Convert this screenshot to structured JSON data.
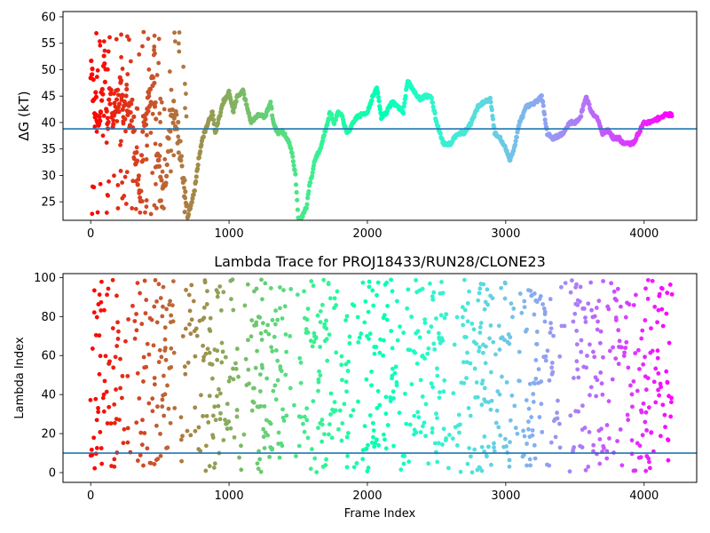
{
  "chart_data": [
    {
      "type": "scatter",
      "title": "",
      "xlabel": "",
      "ylabel": "ΔG (kT)",
      "xlim": [
        -200,
        4380
      ],
      "ylim": [
        21.5,
        61
      ],
      "xticks": [
        0,
        1000,
        2000,
        3000,
        4000
      ],
      "yticks": [
        25,
        30,
        35,
        40,
        45,
        50,
        55,
        60
      ],
      "reference_line": {
        "y": 38.8,
        "color": "#1f77b4"
      },
      "colormap": "rainbow (red at frame 0 to violet at frame 4200)",
      "grid": false,
      "trace": [
        [
          0,
          50
        ],
        [
          20,
          46
        ],
        [
          40,
          42
        ],
        [
          60,
          38
        ],
        [
          80,
          45
        ],
        [
          100,
          52
        ],
        [
          120,
          40
        ],
        [
          140,
          46
        ],
        [
          160,
          40
        ],
        [
          180,
          44
        ],
        [
          200,
          43
        ],
        [
          220,
          48
        ],
        [
          240,
          42
        ],
        [
          260,
          44
        ],
        [
          280,
          39
        ],
        [
          300,
          42
        ],
        [
          320,
          36
        ],
        [
          340,
          30
        ],
        [
          360,
          26
        ],
        [
          380,
          40
        ],
        [
          400,
          42
        ],
        [
          420,
          44
        ],
        [
          440,
          47
        ],
        [
          460,
          46
        ],
        [
          480,
          33
        ],
        [
          500,
          28
        ],
        [
          520,
          25
        ],
        [
          540,
          30
        ],
        [
          560,
          37
        ],
        [
          580,
          41
        ],
        [
          600,
          43
        ],
        [
          620,
          40
        ],
        [
          640,
          36
        ],
        [
          660,
          32
        ],
        [
          680,
          26
        ],
        [
          700,
          22
        ],
        [
          720,
          24
        ],
        [
          750,
          27
        ],
        [
          780,
          33
        ],
        [
          800,
          36
        ],
        [
          820,
          38
        ],
        [
          850,
          40
        ],
        [
          880,
          42
        ],
        [
          900,
          38
        ],
        [
          930,
          41
        ],
        [
          960,
          44
        ],
        [
          990,
          45
        ],
        [
          1000,
          46
        ],
        [
          1030,
          42
        ],
        [
          1060,
          45
        ],
        [
          1100,
          46
        ],
        [
          1130,
          43
        ],
        [
          1160,
          40
        ],
        [
          1190,
          41
        ],
        [
          1220,
          41.5
        ],
        [
          1260,
          41
        ],
        [
          1300,
          44
        ],
        [
          1320,
          40
        ],
        [
          1350,
          38
        ],
        [
          1380,
          38.5
        ],
        [
          1420,
          37
        ],
        [
          1450,
          35
        ],
        [
          1480,
          30
        ],
        [
          1500,
          22
        ],
        [
          1520,
          21.5
        ],
        [
          1540,
          23
        ],
        [
          1560,
          24
        ],
        [
          1580,
          28
        ],
        [
          1600,
          30
        ],
        [
          1620,
          33
        ],
        [
          1640,
          34
        ],
        [
          1660,
          35
        ],
        [
          1680,
          37
        ],
        [
          1700,
          39
        ],
        [
          1730,
          42
        ],
        [
          1760,
          40
        ],
        [
          1790,
          42
        ],
        [
          1820,
          41
        ],
        [
          1850,
          38
        ],
        [
          1880,
          39
        ],
        [
          1920,
          41
        ],
        [
          1960,
          41.5
        ],
        [
          2000,
          42
        ],
        [
          2040,
          45
        ],
        [
          2070,
          46.5
        ],
        [
          2100,
          41
        ],
        [
          2140,
          42
        ],
        [
          2180,
          44
        ],
        [
          2220,
          43
        ],
        [
          2260,
          42
        ],
        [
          2290,
          48
        ],
        [
          2330,
          46
        ],
        [
          2380,
          44.5
        ],
        [
          2420,
          45
        ],
        [
          2460,
          45
        ],
        [
          2500,
          40
        ],
        [
          2550,
          36
        ],
        [
          2600,
          36
        ],
        [
          2650,
          38
        ],
        [
          2700,
          38
        ],
        [
          2750,
          40
        ],
        [
          2800,
          43
        ],
        [
          2850,
          44
        ],
        [
          2890,
          44.5
        ],
        [
          2920,
          38
        ],
        [
          2960,
          37
        ],
        [
          3000,
          35
        ],
        [
          3030,
          33
        ],
        [
          3060,
          35
        ],
        [
          3100,
          40
        ],
        [
          3150,
          43
        ],
        [
          3200,
          43.5
        ],
        [
          3260,
          45
        ],
        [
          3300,
          38
        ],
        [
          3340,
          37
        ],
        [
          3380,
          37.5
        ],
        [
          3420,
          38
        ],
        [
          3460,
          40
        ],
        [
          3500,
          40
        ],
        [
          3540,
          41
        ],
        [
          3580,
          45
        ],
        [
          3620,
          42
        ],
        [
          3660,
          41
        ],
        [
          3700,
          38
        ],
        [
          3740,
          38.5
        ],
        [
          3780,
          37
        ],
        [
          3820,
          37
        ],
        [
          3850,
          36
        ],
        [
          3880,
          36
        ],
        [
          3920,
          36
        ],
        [
          3960,
          38
        ],
        [
          4000,
          40
        ],
        [
          4040,
          40
        ],
        [
          4080,
          40.5
        ],
        [
          4120,
          41
        ],
        [
          4160,
          41.5
        ],
        [
          4200,
          41.5
        ]
      ]
    },
    {
      "type": "scatter",
      "title": "Lambda Trace for PROJ18433/RUN28/CLONE23",
      "xlabel": "Frame Index",
      "ylabel": "Lambda Index",
      "xlim": [
        -200,
        4380
      ],
      "ylim": [
        -5,
        102
      ],
      "xticks": [
        0,
        1000,
        2000,
        3000,
        4000
      ],
      "yticks": [
        0,
        20,
        40,
        60,
        80,
        100
      ],
      "reference_line": {
        "y": 10,
        "color": "#1f77b4"
      },
      "colormap": "rainbow (red at frame 0 to violet at frame 4200)",
      "grid": false,
      "x_range": [
        0,
        4200
      ],
      "y_range": [
        0,
        99
      ]
    }
  ]
}
